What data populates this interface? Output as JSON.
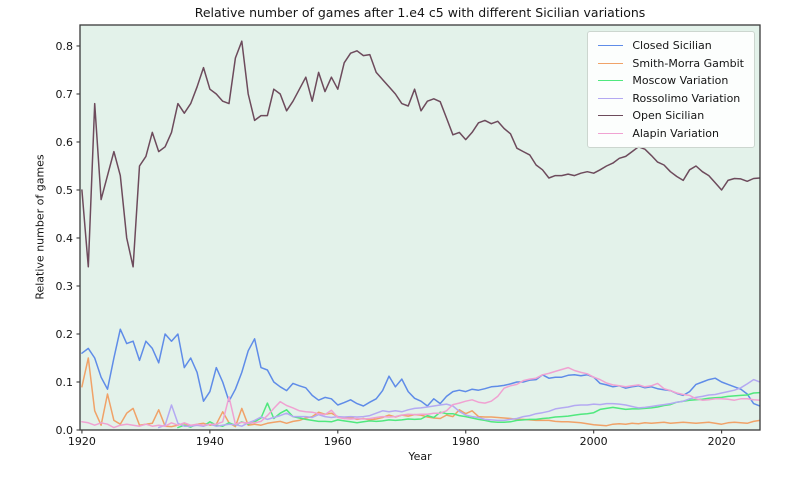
{
  "chart_data": {
    "type": "line",
    "title": "Relative number of games after 1.e4 c5 with different Sicilian variations",
    "xlabel": "Year",
    "ylabel": "Relative number of games",
    "xlim": [
      1919.7,
      2026
    ],
    "ylim": [
      0,
      0.8437
    ],
    "xticks": [
      1920,
      1940,
      1960,
      1980,
      2000,
      2020
    ],
    "yticks": [
      0.0,
      0.1,
      0.2,
      0.3,
      0.4,
      0.5,
      0.6,
      0.7,
      0.8
    ],
    "grid": false,
    "legend_position": "upper right",
    "plot_background": "#e3f2ea",
    "figure_background": "#ffffff",
    "spine_color": "#3a3a3a",
    "text_color": "#151515",
    "x_start_year": 1920,
    "x_step": 1,
    "series": [
      {
        "name": "Closed Sicilian",
        "color": "#5f8ce8",
        "values": [
          0.16,
          0.17,
          0.15,
          0.11,
          0.085,
          0.15,
          0.21,
          0.18,
          0.185,
          0.145,
          0.185,
          0.17,
          0.14,
          0.2,
          0.185,
          0.2,
          0.13,
          0.15,
          0.12,
          0.06,
          0.08,
          0.13,
          0.1,
          0.06,
          0.085,
          0.12,
          0.165,
          0.19,
          0.13,
          0.125,
          0.1,
          0.09,
          0.082,
          0.097,
          0.092,
          0.088,
          0.072,
          0.062,
          0.068,
          0.065,
          0.052,
          0.057,
          0.063,
          0.055,
          0.05,
          0.058,
          0.065,
          0.082,
          0.112,
          0.09,
          0.106,
          0.08,
          0.066,
          0.06,
          0.05,
          0.065,
          0.055,
          0.07,
          0.08,
          0.083,
          0.08,
          0.085,
          0.083,
          0.086,
          0.09,
          0.091,
          0.093,
          0.096,
          0.1,
          0.1,
          0.104,
          0.105,
          0.115,
          0.108,
          0.11,
          0.11,
          0.114,
          0.115,
          0.113,
          0.115,
          0.11,
          0.097,
          0.094,
          0.09,
          0.092,
          0.087,
          0.09,
          0.092,
          0.088,
          0.09,
          0.086,
          0.084,
          0.082,
          0.076,
          0.072,
          0.08,
          0.095,
          0.1,
          0.105,
          0.108,
          0.1,
          0.095,
          0.09,
          0.085,
          0.075,
          0.055,
          0.05
        ]
      },
      {
        "name": "Smith-Morra Gambit",
        "color": "#f0a268",
        "values": [
          0.09,
          0.15,
          0.04,
          0.01,
          0.075,
          0.02,
          0.012,
          0.035,
          0.045,
          0.01,
          0.012,
          0.014,
          0.042,
          0.008,
          0.007,
          0.01,
          0.014,
          0.008,
          0.012,
          0.014,
          0.01,
          0.012,
          0.038,
          0.015,
          0.007,
          0.045,
          0.01,
          0.012,
          0.01,
          0.014,
          0.016,
          0.018,
          0.014,
          0.018,
          0.02,
          0.025,
          0.028,
          0.037,
          0.033,
          0.035,
          0.028,
          0.024,
          0.026,
          0.022,
          0.024,
          0.021,
          0.023,
          0.026,
          0.031,
          0.027,
          0.031,
          0.029,
          0.032,
          0.031,
          0.027,
          0.025,
          0.024,
          0.031,
          0.028,
          0.042,
          0.034,
          0.04,
          0.028,
          0.027,
          0.027,
          0.026,
          0.025,
          0.024,
          0.022,
          0.022,
          0.021,
          0.02,
          0.02,
          0.02,
          0.018,
          0.017,
          0.017,
          0.016,
          0.015,
          0.013,
          0.011,
          0.01,
          0.009,
          0.012,
          0.013,
          0.012,
          0.014,
          0.013,
          0.015,
          0.014,
          0.015,
          0.016,
          0.014,
          0.015,
          0.016,
          0.015,
          0.014,
          0.015,
          0.016,
          0.014,
          0.012,
          0.015,
          0.016,
          0.015,
          0.014,
          0.018,
          0.02
        ]
      },
      {
        "name": "Moscow Variation",
        "color": "#50e87e",
        "values": [
          null,
          null,
          null,
          null,
          null,
          null,
          null,
          null,
          null,
          null,
          null,
          null,
          null,
          null,
          null,
          0.005,
          0.01,
          0.006,
          0.012,
          0.008,
          0.017,
          0.01,
          0.008,
          0.015,
          0.01,
          0.017,
          0.012,
          0.017,
          0.025,
          0.056,
          0.024,
          0.035,
          0.042,
          0.028,
          0.025,
          0.022,
          0.02,
          0.018,
          0.018,
          0.017,
          0.021,
          0.019,
          0.017,
          0.015,
          0.017,
          0.019,
          0.018,
          0.019,
          0.021,
          0.02,
          0.021,
          0.023,
          0.022,
          0.023,
          0.03,
          0.026,
          0.037,
          0.034,
          0.034,
          0.03,
          0.028,
          0.025,
          0.022,
          0.02,
          0.017,
          0.016,
          0.016,
          0.017,
          0.02,
          0.021,
          0.022,
          0.022,
          0.024,
          0.025,
          0.027,
          0.028,
          0.029,
          0.031,
          0.033,
          0.034,
          0.036,
          0.043,
          0.045,
          0.047,
          0.045,
          0.043,
          0.044,
          0.044,
          0.045,
          0.046,
          0.048,
          0.051,
          0.053,
          0.058,
          0.06,
          0.062,
          0.063,
          0.064,
          0.066,
          0.067,
          0.068,
          0.07,
          0.071,
          0.072,
          0.073,
          0.077,
          0.078
        ]
      },
      {
        "name": "Rossolimo Variation",
        "color": "#b4a9f2",
        "values": [
          null,
          null,
          null,
          null,
          null,
          null,
          null,
          null,
          null,
          null,
          null,
          null,
          0.005,
          0.01,
          0.052,
          0.014,
          0.008,
          0.008,
          0.01,
          0.008,
          0.012,
          0.008,
          0.01,
          0.012,
          0.011,
          0.008,
          0.015,
          0.02,
          0.027,
          0.022,
          0.026,
          0.03,
          0.035,
          0.028,
          0.028,
          0.028,
          0.026,
          0.032,
          0.028,
          0.026,
          0.028,
          0.027,
          0.028,
          0.027,
          0.028,
          0.03,
          0.035,
          0.04,
          0.038,
          0.04,
          0.038,
          0.042,
          0.045,
          0.046,
          0.048,
          0.05,
          0.052,
          0.054,
          0.05,
          0.039,
          0.031,
          0.028,
          0.026,
          0.022,
          0.021,
          0.02,
          0.02,
          0.022,
          0.024,
          0.028,
          0.03,
          0.034,
          0.036,
          0.039,
          0.044,
          0.046,
          0.048,
          0.051,
          0.052,
          0.052,
          0.054,
          0.053,
          0.055,
          0.055,
          0.054,
          0.052,
          0.049,
          0.046,
          0.047,
          0.049,
          0.051,
          0.053,
          0.055,
          0.058,
          0.06,
          0.065,
          0.068,
          0.07,
          0.073,
          0.074,
          0.077,
          0.08,
          0.083,
          0.088,
          0.096,
          0.105,
          0.1
        ]
      },
      {
        "name": "Open Sicilian",
        "color": "#6d4b5c",
        "values": [
          0.5,
          0.34,
          0.68,
          0.48,
          0.53,
          0.58,
          0.53,
          0.4,
          0.34,
          0.55,
          0.57,
          0.62,
          0.58,
          0.59,
          0.62,
          0.68,
          0.66,
          0.68,
          0.715,
          0.755,
          0.71,
          0.7,
          0.685,
          0.68,
          0.775,
          0.81,
          0.7,
          0.645,
          0.655,
          0.655,
          0.71,
          0.7,
          0.665,
          0.685,
          0.71,
          0.735,
          0.685,
          0.745,
          0.705,
          0.735,
          0.71,
          0.765,
          0.785,
          0.79,
          0.78,
          0.782,
          0.745,
          0.73,
          0.715,
          0.7,
          0.68,
          0.675,
          0.71,
          0.665,
          0.685,
          0.69,
          0.684,
          0.65,
          0.615,
          0.62,
          0.605,
          0.62,
          0.64,
          0.645,
          0.638,
          0.643,
          0.628,
          0.617,
          0.587,
          0.58,
          0.573,
          0.552,
          0.542,
          0.525,
          0.53,
          0.53,
          0.533,
          0.53,
          0.535,
          0.538,
          0.535,
          0.542,
          0.55,
          0.556,
          0.566,
          0.57,
          0.58,
          0.59,
          0.585,
          0.572,
          0.558,
          0.552,
          0.538,
          0.528,
          0.52,
          0.542,
          0.55,
          0.538,
          0.53,
          0.515,
          0.5,
          0.52,
          0.524,
          0.523,
          0.518,
          0.524,
          0.525
        ]
      },
      {
        "name": "Alapin Variation",
        "color": "#f0a2d2",
        "values": [
          0.017,
          0.015,
          0.01,
          0.015,
          0.012,
          0.005,
          0.01,
          0.012,
          0.01,
          0.008,
          0.012,
          0.008,
          0.01,
          0.008,
          0.015,
          0.01,
          0.015,
          0.01,
          0.012,
          0.01,
          0.012,
          0.012,
          0.017,
          0.069,
          0.012,
          0.016,
          0.014,
          0.015,
          0.018,
          0.03,
          0.045,
          0.059,
          0.051,
          0.046,
          0.04,
          0.038,
          0.037,
          0.034,
          0.032,
          0.041,
          0.026,
          0.024,
          0.023,
          0.024,
          0.023,
          0.024,
          0.026,
          0.028,
          0.027,
          0.028,
          0.031,
          0.033,
          0.032,
          0.033,
          0.033,
          0.035,
          0.035,
          0.04,
          0.053,
          0.056,
          0.06,
          0.063,
          0.058,
          0.056,
          0.06,
          0.07,
          0.087,
          0.092,
          0.095,
          0.103,
          0.106,
          0.108,
          0.115,
          0.118,
          0.122,
          0.126,
          0.13,
          0.124,
          0.12,
          0.117,
          0.11,
          0.105,
          0.098,
          0.094,
          0.092,
          0.09,
          0.092,
          0.094,
          0.09,
          0.092,
          0.097,
          0.086,
          0.082,
          0.077,
          0.074,
          0.072,
          0.065,
          0.062,
          0.063,
          0.065,
          0.065,
          0.064,
          0.062,
          0.065,
          0.065,
          0.063,
          0.062
        ]
      }
    ]
  }
}
